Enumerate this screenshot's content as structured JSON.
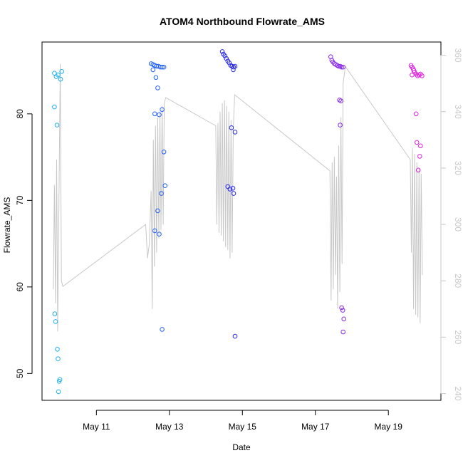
{
  "chart_data": {
    "type": "scatter",
    "title": "ATOM4 Northbound Flowrate_AMS",
    "xlabel": "Date",
    "ylabel": "Flowrate_AMS",
    "x_ticks": [
      "May 11",
      "May 13",
      "May 15",
      "May 17",
      "May 19"
    ],
    "x_tick_days": [
      11,
      13,
      15,
      17,
      19
    ],
    "xlim_days": [
      9.51,
      20.44
    ],
    "ylim": [
      46.9,
      88.3
    ],
    "y_ticks": [
      50,
      60,
      70,
      80
    ],
    "y2_ticks": [
      240,
      260,
      280,
      300,
      320,
      340,
      360
    ],
    "y2lim": [
      237.6,
      364.7
    ],
    "grid": false,
    "legend": "none",
    "colors": {
      "line": "#c8c8c8",
      "axis": "#000000",
      "secondary_axis": "#c8c8c8",
      "points": [
        "#1fb0f0",
        "#2060ff",
        "#2a2ae8",
        "#8a2be8",
        "#e020e0"
      ]
    },
    "series": [
      {
        "color": "#1fb0f0",
        "points": [
          [
            9.85,
            84.7
          ],
          [
            9.9,
            84.3
          ],
          [
            9.95,
            84.5
          ],
          [
            10.05,
            84.9
          ],
          [
            10.02,
            84.0
          ],
          [
            9.85,
            80.8
          ],
          [
            9.92,
            78.7
          ],
          [
            9.86,
            56.9
          ],
          [
            9.88,
            56.0
          ],
          [
            9.93,
            52.8
          ],
          [
            9.95,
            51.7
          ],
          [
            9.98,
            49.1
          ],
          [
            10.0,
            49.3
          ],
          [
            9.96,
            47.9
          ]
        ]
      },
      {
        "color": "#2060ff",
        "points": [
          [
            12.5,
            85.8
          ],
          [
            12.55,
            85.7
          ],
          [
            12.6,
            85.6
          ],
          [
            12.65,
            85.5
          ],
          [
            12.7,
            85.5
          ],
          [
            12.75,
            85.4
          ],
          [
            12.8,
            85.4
          ],
          [
            12.85,
            85.4
          ],
          [
            12.55,
            85.1
          ],
          [
            12.63,
            84.2
          ],
          [
            12.68,
            83.0
          ],
          [
            12.8,
            80.5
          ],
          [
            12.6,
            80.0
          ],
          [
            12.72,
            79.9
          ],
          [
            12.85,
            75.6
          ],
          [
            12.88,
            71.7
          ],
          [
            12.78,
            70.8
          ],
          [
            12.68,
            68.8
          ],
          [
            12.6,
            66.5
          ],
          [
            12.72,
            66.1
          ],
          [
            12.8,
            55.1
          ]
        ]
      },
      {
        "color": "#2a2ae8",
        "points": [
          [
            14.45,
            87.2
          ],
          [
            14.48,
            86.9
          ],
          [
            14.52,
            86.7
          ],
          [
            14.56,
            86.4
          ],
          [
            14.6,
            86.1
          ],
          [
            14.64,
            85.9
          ],
          [
            14.68,
            85.6
          ],
          [
            14.72,
            85.5
          ],
          [
            14.76,
            85.4
          ],
          [
            14.8,
            85.5
          ],
          [
            14.75,
            85.1
          ],
          [
            14.7,
            78.4
          ],
          [
            14.8,
            77.9
          ],
          [
            14.6,
            71.6
          ],
          [
            14.66,
            71.3
          ],
          [
            14.74,
            71.4
          ],
          [
            14.76,
            70.8
          ],
          [
            14.8,
            54.3
          ]
        ]
      },
      {
        "color": "#8a2be8",
        "points": [
          [
            17.42,
            86.6
          ],
          [
            17.45,
            86.2
          ],
          [
            17.48,
            86.0
          ],
          [
            17.52,
            85.8
          ],
          [
            17.56,
            85.7
          ],
          [
            17.6,
            85.6
          ],
          [
            17.64,
            85.5
          ],
          [
            17.68,
            85.5
          ],
          [
            17.72,
            85.4
          ],
          [
            17.76,
            85.4
          ],
          [
            17.66,
            81.6
          ],
          [
            17.7,
            81.5
          ],
          [
            17.68,
            78.7
          ],
          [
            17.72,
            57.6
          ],
          [
            17.75,
            57.3
          ],
          [
            17.78,
            56.3
          ],
          [
            17.76,
            54.8
          ]
        ]
      },
      {
        "color": "#e020e0",
        "points": [
          [
            19.62,
            85.6
          ],
          [
            19.65,
            85.4
          ],
          [
            19.68,
            85.2
          ],
          [
            19.7,
            85.0
          ],
          [
            19.72,
            84.8
          ],
          [
            19.76,
            84.6
          ],
          [
            19.8,
            84.4
          ],
          [
            19.84,
            84.5
          ],
          [
            19.88,
            84.6
          ],
          [
            19.92,
            84.4
          ],
          [
            19.65,
            84.5
          ],
          [
            19.76,
            80.0
          ],
          [
            19.78,
            76.7
          ],
          [
            19.88,
            76.3
          ],
          [
            19.86,
            75.1
          ],
          [
            19.82,
            73.5
          ]
        ]
      }
    ],
    "secondary_line": [
      [
        9.82,
        277
      ],
      [
        9.85,
        314
      ],
      [
        9.88,
        272
      ],
      [
        9.91,
        323
      ],
      [
        9.94,
        262
      ],
      [
        9.98,
        318
      ],
      [
        10.01,
        357
      ],
      [
        10.04,
        280
      ],
      [
        10.08,
        278
      ],
      [
        12.35,
        300
      ],
      [
        12.4,
        288
      ],
      [
        12.45,
        293
      ],
      [
        12.5,
        312
      ],
      [
        12.53,
        270
      ],
      [
        12.56,
        330
      ],
      [
        12.59,
        285
      ],
      [
        12.62,
        335
      ],
      [
        12.65,
        290
      ],
      [
        12.68,
        338
      ],
      [
        12.71,
        295
      ],
      [
        12.74,
        340
      ],
      [
        12.77,
        298
      ],
      [
        12.8,
        342
      ],
      [
        12.83,
        300
      ],
      [
        12.86,
        343
      ],
      [
        12.9,
        345
      ],
      [
        14.27,
        335
      ],
      [
        14.3,
        300
      ],
      [
        14.33,
        336
      ],
      [
        14.36,
        297
      ],
      [
        14.39,
        340
      ],
      [
        14.42,
        296
      ],
      [
        14.45,
        343
      ],
      [
        14.48,
        294
      ],
      [
        14.51,
        344
      ],
      [
        14.54,
        292
      ],
      [
        14.57,
        342
      ],
      [
        14.6,
        291
      ],
      [
        14.63,
        340
      ],
      [
        14.66,
        288
      ],
      [
        14.69,
        337
      ],
      [
        14.72,
        290
      ],
      [
        14.75,
        334
      ],
      [
        14.79,
        346
      ],
      [
        17.4,
        319
      ],
      [
        17.43,
        273
      ],
      [
        17.46,
        322
      ],
      [
        17.49,
        277
      ],
      [
        17.52,
        324
      ],
      [
        17.55,
        282
      ],
      [
        17.58,
        317
      ],
      [
        17.61,
        270
      ],
      [
        17.64,
        328
      ],
      [
        17.67,
        276
      ],
      [
        17.7,
        338
      ],
      [
        17.73,
        286
      ],
      [
        17.76,
        350
      ],
      [
        17.82,
        356
      ],
      [
        19.6,
        323
      ],
      [
        19.63,
        290
      ],
      [
        19.66,
        327
      ],
      [
        19.69,
        270
      ],
      [
        19.72,
        325
      ],
      [
        19.75,
        268
      ],
      [
        19.78,
        322
      ],
      [
        19.81,
        267
      ],
      [
        19.84,
        320
      ],
      [
        19.87,
        265
      ],
      [
        19.9,
        318
      ],
      [
        19.93,
        282
      ]
    ]
  }
}
